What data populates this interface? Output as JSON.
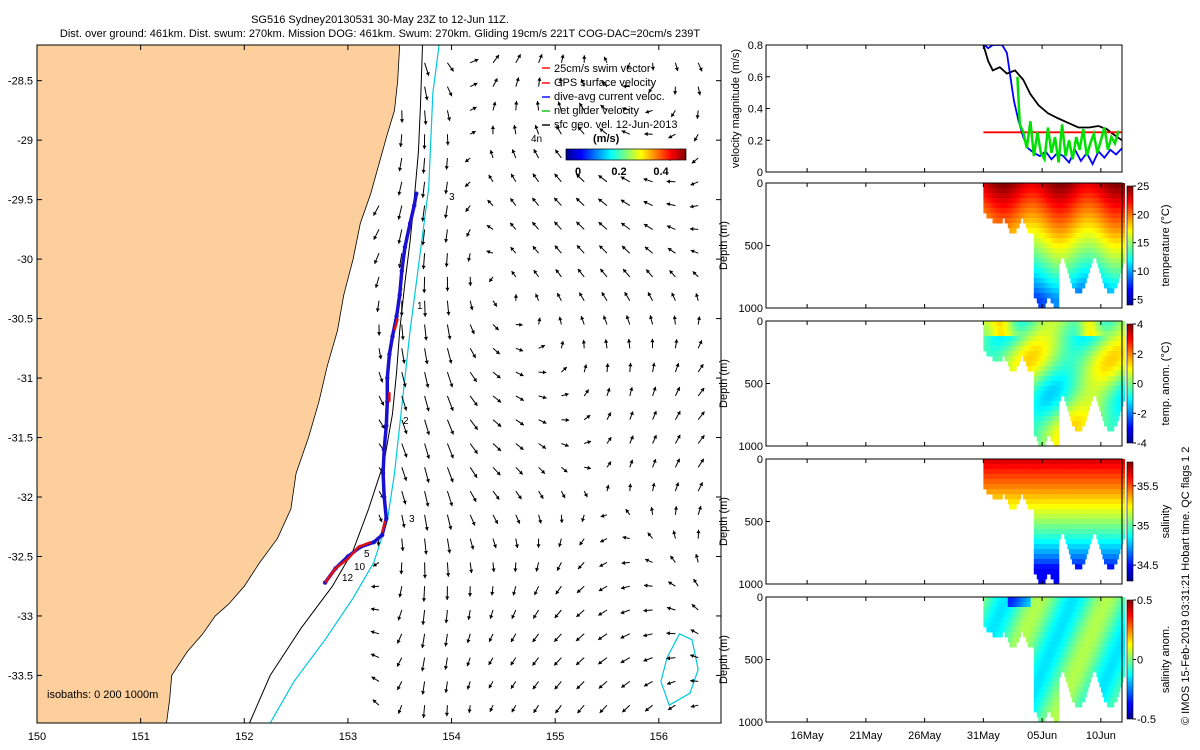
{
  "title": {
    "line1": "SG516 Sydney20130531 30-May 23Z to 12-Jun 11Z.",
    "line2": "Dist. over ground: 461km. Dist. swum: 270km. Mission DOG: 461km. Swum: 270km. Gliding 19cm/s 221T COG-DAC=20cm/s 239T"
  },
  "credit": "© IMOS 15-Feb-2019 03:31:21 Hobart time. QC flags 1  2",
  "colors": {
    "land": "#fccf9c",
    "isobath_200": "#000000",
    "isobath_1000": "#00c8dc",
    "track_blue": "#1a10d0",
    "track_red": "#e01010",
    "vel_black": "#000000",
    "vel_red": "#ff0000",
    "vel_blue": "#0a16d8",
    "vel_green": "#14e614"
  },
  "map": {
    "legend": [
      {
        "label": "25cm/s swim vector",
        "color": "#ff0000"
      },
      {
        "label": "GPS surface velocity",
        "color": "#ff0000"
      },
      {
        "label": "dive-avg current veloc.",
        "color": "#0000ff"
      },
      {
        "label": "net glider velocity",
        "color": "#00c800"
      },
      {
        "label": "sfc geo. vel. 12-Jun-2013",
        "color": "#000000"
      }
    ],
    "colorbar_label": "(m/s)",
    "colorbar_ticks": [
      "0",
      "0.2",
      "0.4"
    ],
    "isobath_text": "isobaths: 0   200  1000m",
    "annotations": [
      "4n",
      "3",
      "1",
      "2",
      "3",
      "5",
      "10",
      "12"
    ]
  },
  "chart_data": [
    {
      "type": "map",
      "title": "SG516 Sydney20130531 glider track",
      "xlim": [
        150,
        156.6
      ],
      "ylim": [
        -33.9,
        -28.2
      ],
      "x_ticks": [
        "150",
        "151",
        "152",
        "153",
        "154",
        "155",
        "156"
      ],
      "x_tick_values": [
        150,
        151,
        152,
        153,
        154,
        155,
        156
      ],
      "y_ticks": [
        "-28.5",
        "-29",
        "-29.5",
        "-30",
        "-30.5",
        "-31",
        "-31.5",
        "-32",
        "-32.5",
        "-33",
        "-33.5"
      ],
      "y_tick_values": [
        -28.5,
        -29,
        -29.5,
        -30,
        -30.5,
        -31,
        -31.5,
        -32,
        -32.5,
        -33,
        -33.5
      ],
      "coastline": [
        [
          150.0,
          -33.9
        ],
        [
          151.25,
          -33.9
        ],
        [
          151.28,
          -33.7
        ],
        [
          151.3,
          -33.5
        ],
        [
          151.45,
          -33.3
        ],
        [
          151.6,
          -33.15
        ],
        [
          151.72,
          -33.0
        ],
        [
          151.85,
          -32.9
        ],
        [
          152.0,
          -32.75
        ],
        [
          152.15,
          -32.55
        ],
        [
          152.32,
          -32.35
        ],
        [
          152.45,
          -32.1
        ],
        [
          152.5,
          -31.8
        ],
        [
          152.62,
          -31.5
        ],
        [
          152.72,
          -31.2
        ],
        [
          152.8,
          -30.9
        ],
        [
          152.9,
          -30.6
        ],
        [
          152.96,
          -30.3
        ],
        [
          153.05,
          -30.0
        ],
        [
          153.12,
          -29.7
        ],
        [
          153.22,
          -29.45
        ],
        [
          153.3,
          -29.2
        ],
        [
          153.38,
          -28.95
        ],
        [
          153.45,
          -28.75
        ],
        [
          153.48,
          -28.5
        ],
        [
          153.5,
          -28.2
        ],
        [
          150.0,
          -28.2
        ]
      ],
      "isobath_200m": [
        [
          152.05,
          -33.9
        ],
        [
          152.25,
          -33.5
        ],
        [
          152.55,
          -33.1
        ],
        [
          152.85,
          -32.75
        ],
        [
          153.05,
          -32.45
        ],
        [
          153.2,
          -32.1
        ],
        [
          153.35,
          -31.7
        ],
        [
          153.43,
          -31.3
        ],
        [
          153.47,
          -30.95
        ],
        [
          153.5,
          -30.6
        ],
        [
          153.55,
          -30.2
        ],
        [
          153.6,
          -29.85
        ],
        [
          153.64,
          -29.5
        ],
        [
          153.68,
          -29.1
        ],
        [
          153.7,
          -28.7
        ],
        [
          153.72,
          -28.2
        ]
      ],
      "isobath_1000m": [
        [
          152.25,
          -33.9
        ],
        [
          152.48,
          -33.55
        ],
        [
          152.78,
          -33.2
        ],
        [
          153.05,
          -32.85
        ],
        [
          153.25,
          -32.55
        ],
        [
          153.38,
          -32.2
        ],
        [
          153.45,
          -31.8
        ],
        [
          153.5,
          -31.4
        ],
        [
          153.55,
          -31.0
        ],
        [
          153.6,
          -30.6
        ],
        [
          153.66,
          -30.2
        ],
        [
          153.72,
          -29.8
        ],
        [
          153.78,
          -29.4
        ],
        [
          153.8,
          -29.0
        ],
        [
          153.82,
          -28.6
        ],
        [
          153.88,
          -28.2
        ]
      ],
      "eddy_contour": [
        [
          156.1,
          -33.75
        ],
        [
          156.3,
          -33.65
        ],
        [
          156.38,
          -33.45
        ],
        [
          156.32,
          -33.2
        ],
        [
          156.2,
          -33.15
        ],
        [
          156.08,
          -33.35
        ],
        [
          156.02,
          -33.55
        ],
        [
          156.1,
          -33.75
        ]
      ],
      "track": [
        [
          152.78,
          -32.72
        ],
        [
          152.88,
          -32.6
        ],
        [
          153.0,
          -32.5
        ],
        [
          153.12,
          -32.42
        ],
        [
          153.25,
          -32.38
        ],
        [
          153.33,
          -32.32
        ],
        [
          153.37,
          -32.18
        ],
        [
          153.35,
          -32.0
        ],
        [
          153.34,
          -31.8
        ],
        [
          153.35,
          -31.6
        ],
        [
          153.37,
          -31.4
        ],
        [
          153.38,
          -31.2
        ],
        [
          153.38,
          -31.0
        ],
        [
          153.4,
          -30.8
        ],
        [
          153.43,
          -30.65
        ],
        [
          153.47,
          -30.48
        ],
        [
          153.5,
          -30.3
        ],
        [
          153.52,
          -30.1
        ],
        [
          153.55,
          -29.9
        ],
        [
          153.6,
          -29.7
        ],
        [
          153.64,
          -29.55
        ],
        [
          153.66,
          -29.45
        ]
      ],
      "track_red_segments": [
        [
          [
            152.78,
            -32.72
          ],
          [
            152.88,
            -32.6
          ],
          [
            153.0,
            -32.52
          ],
          [
            153.1,
            -32.42
          ],
          [
            153.22,
            -32.38
          ]
        ],
        [
          [
            153.33,
            -32.3
          ],
          [
            153.36,
            -32.2
          ]
        ],
        [
          [
            153.4,
            -31.2
          ],
          [
            153.4,
            -31.12
          ]
        ],
        [
          [
            153.45,
            -30.6
          ],
          [
            153.48,
            -30.5
          ]
        ]
      ]
    },
    {
      "type": "line",
      "title": "velocity magnitude",
      "ylabel": "velocity magnitude (m/s)",
      "x_unit": "day of May-Jun 2013 (May=1..31, Jun=32+)",
      "xlim": [
        12.5,
        42.8
      ],
      "ylim": [
        0,
        0.8
      ],
      "y_ticks": [
        "0",
        "0.2",
        "0.4",
        "0.6",
        "0.8"
      ],
      "y_tick_values": [
        0,
        0.2,
        0.4,
        0.6,
        0.8
      ],
      "series": [
        {
          "name": "black",
          "color": "#000000",
          "x": [
            31.0,
            31.4,
            31.8,
            32.4,
            33.0,
            33.7,
            34.4,
            35.0,
            35.7,
            36.5,
            37.3,
            38.2,
            39.1,
            40.0,
            40.8,
            41.5,
            42.2,
            42.8
          ],
          "y": [
            0.8,
            0.7,
            0.64,
            0.66,
            0.62,
            0.64,
            0.58,
            0.49,
            0.42,
            0.37,
            0.34,
            0.31,
            0.28,
            0.28,
            0.29,
            0.27,
            0.23,
            0.2
          ]
        },
        {
          "name": "red",
          "color": "#ff0000",
          "x": [
            31.0,
            31.7,
            32.4,
            33.1,
            33.9,
            34.6,
            35.0,
            35.6,
            36.3,
            37.0,
            37.7,
            38.4,
            39.1,
            39.8,
            40.5,
            41.2,
            41.9,
            42.8
          ],
          "y": [
            0.25,
            0.25,
            0.25,
            0.25,
            0.25,
            0.25,
            0.25,
            0.25,
            0.25,
            0.25,
            0.25,
            0.25,
            0.25,
            0.25,
            0.25,
            0.25,
            0.25,
            0.25
          ]
        },
        {
          "name": "blue",
          "color": "#0000ff",
          "x": [
            31.1,
            31.4,
            31.8,
            32.2,
            32.6,
            33.0,
            33.3,
            33.6,
            34.0,
            34.4,
            34.8,
            35.3,
            35.8,
            36.3,
            36.8,
            37.3,
            37.8,
            38.3,
            38.8,
            39.3,
            39.8,
            40.3,
            40.8,
            41.3,
            41.8,
            42.3,
            42.8
          ],
          "y": [
            0.8,
            0.78,
            0.8,
            0.8,
            0.8,
            0.75,
            0.6,
            0.45,
            0.32,
            0.22,
            0.15,
            0.12,
            0.1,
            0.13,
            0.08,
            0.12,
            0.1,
            0.06,
            0.14,
            0.07,
            0.12,
            0.05,
            0.13,
            0.09,
            0.14,
            0.11,
            0.15
          ]
        },
        {
          "name": "green",
          "color": "#00e000",
          "x": [
            33.9,
            34.1,
            34.4,
            34.7,
            35.0,
            35.3,
            35.6,
            35.9,
            36.2,
            36.5,
            36.8,
            37.1,
            37.4,
            37.7,
            38.0,
            38.3,
            38.6,
            38.9,
            39.2,
            39.5,
            39.8,
            40.1,
            40.4,
            40.7,
            41.0,
            41.3,
            41.6,
            41.9,
            42.2,
            42.5
          ],
          "y": [
            0.6,
            0.3,
            0.25,
            0.15,
            0.32,
            0.1,
            0.25,
            0.12,
            0.08,
            0.28,
            0.12,
            0.22,
            0.06,
            0.3,
            0.1,
            0.2,
            0.08,
            0.22,
            0.14,
            0.27,
            0.1,
            0.18,
            0.24,
            0.12,
            0.2,
            0.28,
            0.14,
            0.22,
            0.18,
            0.26
          ]
        }
      ]
    },
    {
      "type": "heatmap",
      "name": "temperature section",
      "ylabel": "Depth (m)",
      "ylim": [
        0,
        1000
      ],
      "y_ticks": [
        "0",
        "500",
        "1000"
      ],
      "y_tick_values": [
        0,
        500,
        1000
      ],
      "colorbar_label": "temperature (°C)",
      "clim": [
        4,
        25
      ],
      "colorbar_ticks": [
        "5",
        "10",
        "15",
        "20",
        "25"
      ],
      "colorbar_tick_values": [
        5,
        10,
        15,
        20,
        25
      ]
    },
    {
      "type": "heatmap",
      "name": "temperature anomaly section",
      "ylabel": "Depth (m)",
      "ylim": [
        0,
        1000
      ],
      "y_ticks": [
        "0",
        "500",
        "1000"
      ],
      "y_tick_values": [
        0,
        500,
        1000
      ],
      "colorbar_label": "temp. anom. (°C)",
      "clim": [
        -4,
        4
      ],
      "colorbar_ticks": [
        "-4",
        "-2",
        "0",
        "2",
        "4"
      ],
      "colorbar_tick_values": [
        -4,
        -2,
        0,
        2,
        4
      ]
    },
    {
      "type": "heatmap",
      "name": "salinity section",
      "ylabel": "Depth (m)",
      "ylim": [
        0,
        1000
      ],
      "y_ticks": [
        "0",
        "500",
        "1000"
      ],
      "y_tick_values": [
        0,
        500,
        1000
      ],
      "colorbar_label": "salinity",
      "clim": [
        34.3,
        35.8
      ],
      "colorbar_ticks": [
        "34.5",
        "35",
        "35.5"
      ],
      "colorbar_tick_values": [
        34.5,
        35,
        35.5
      ]
    },
    {
      "type": "heatmap",
      "name": "salinity anomaly section",
      "ylabel": "Depth (m)",
      "ylim": [
        0,
        1000
      ],
      "y_ticks": [
        "0",
        "500",
        "1000"
      ],
      "y_tick_values": [
        0,
        500,
        1000
      ],
      "colorbar_label": "salinity anom.",
      "clim": [
        -0.5,
        0.5
      ],
      "colorbar_ticks": [
        "-0.5",
        "0",
        "0.5"
      ],
      "colorbar_tick_values": [
        -0.5,
        0,
        0.5
      ]
    },
    {
      "type": "axis",
      "name": "shared time axis",
      "x_ticks": [
        "16May",
        "21May",
        "26May",
        "31May",
        "05Jun",
        "10Jun"
      ],
      "x_tick_values": [
        16,
        21,
        26,
        31,
        36,
        41
      ]
    }
  ]
}
